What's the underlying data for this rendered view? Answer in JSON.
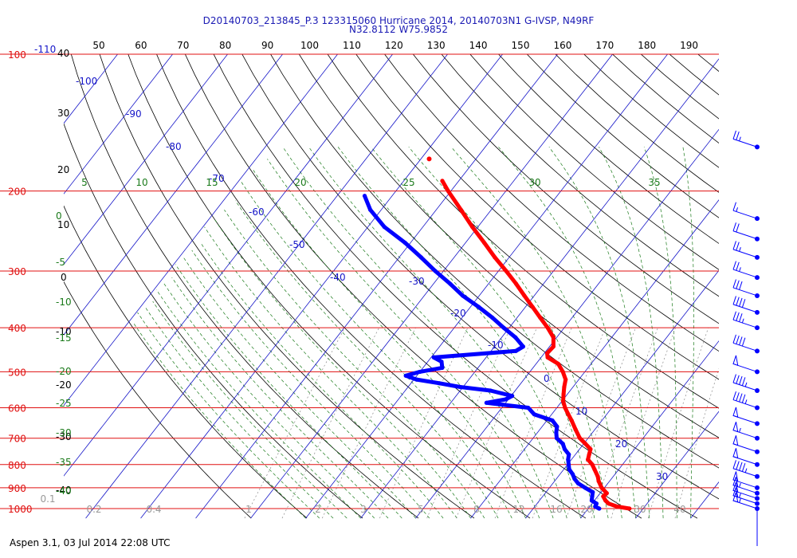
{
  "header": {
    "line1": "D20140703_213845_P.3 123315060 Hurricane 2014, 20140703N1 G-IVSP, N49RF",
    "line2": "N32.8112 W75.9852"
  },
  "footer": "Aspen 3.1, 03 Jul 2014  22:08 UTC",
  "colors": {
    "isobar": "#e01010",
    "pressure_label": "#e01010",
    "isotherm": "#1515c8",
    "dry_adiabat": "#000000",
    "moist_adiabat": "#1a7a1a",
    "mixing_ratio": "#888888",
    "temperature": "#ff0000",
    "dewpoint": "#0000ff",
    "wind_barb": "#0000ff"
  },
  "chart_data": {
    "type": "skew-t log-p",
    "title": "D20140703_213845_P.3 123315060 Hurricane 2014, 20140703N1 G-IVSP, N49RF",
    "subtitle": "N32.8112 W75.9852",
    "pressure_levels_hPa": [
      1000,
      900,
      800,
      700,
      600,
      500,
      400,
      300,
      200,
      100
    ],
    "pressure_labels": [
      "1000",
      "900",
      "800",
      "700",
      "600",
      "500",
      "400",
      "300",
      "200",
      "100"
    ],
    "top_labels": {
      "values": [
        "50",
        "60",
        "70",
        "80",
        "90",
        "100",
        "110",
        "120",
        "130",
        "140",
        "150",
        "160",
        "170",
        "180",
        "190"
      ],
      "left": "-110"
    },
    "left_axis_labels": [
      "40",
      "30",
      "20",
      "10",
      "0",
      "-10",
      "-20",
      "-30",
      "-40"
    ],
    "isotherm_labels": [
      "-100",
      "-90",
      "-80",
      "-70",
      "-60",
      "-50",
      "-40",
      "-30",
      "-20",
      "-10",
      "0",
      "10",
      "20",
      "30"
    ],
    "theta_e_labels_top": [
      "5",
      "10",
      "15",
      "20",
      "25",
      "30",
      "35"
    ],
    "theta_e_labels_left": [
      "0",
      "-5",
      "-10",
      "-15",
      "-20",
      "-25",
      "-30",
      "-35",
      "-40"
    ],
    "mixing_ratio_labels": [
      "0.1",
      "0.2",
      "0.4",
      "1",
      "2",
      "3",
      "5",
      "8",
      "12",
      "16",
      "20",
      "30",
      "40"
    ],
    "temperature": [
      {
        "p": 1000,
        "t": 27.5
      },
      {
        "p": 990,
        "t": 25.0
      },
      {
        "p": 975,
        "t": 23.0
      },
      {
        "p": 960,
        "t": 22.0
      },
      {
        "p": 940,
        "t": 21.0
      },
      {
        "p": 925,
        "t": 21.2
      },
      {
        "p": 900,
        "t": 19.5
      },
      {
        "p": 870,
        "t": 18.0
      },
      {
        "p": 850,
        "t": 17.2
      },
      {
        "p": 820,
        "t": 15.6
      },
      {
        "p": 800,
        "t": 14.5
      },
      {
        "p": 780,
        "t": 13.0
      },
      {
        "p": 760,
        "t": 12.5
      },
      {
        "p": 740,
        "t": 12.0
      },
      {
        "p": 720,
        "t": 10.3
      },
      {
        "p": 700,
        "t": 8.5
      },
      {
        "p": 670,
        "t": 6.5
      },
      {
        "p": 640,
        "t": 4.5
      },
      {
        "p": 620,
        "t": 3.0
      },
      {
        "p": 600,
        "t": 1.5
      },
      {
        "p": 580,
        "t": 0.2
      },
      {
        "p": 560,
        "t": -0.7
      },
      {
        "p": 540,
        "t": -1.6
      },
      {
        "p": 520,
        "t": -2.4
      },
      {
        "p": 500,
        "t": -4.0
      },
      {
        "p": 480,
        "t": -6.0
      },
      {
        "p": 465,
        "t": -8.8
      },
      {
        "p": 455,
        "t": -9.5
      },
      {
        "p": 440,
        "t": -9.3
      },
      {
        "p": 420,
        "t": -10.6
      },
      {
        "p": 400,
        "t": -13.0
      },
      {
        "p": 380,
        "t": -15.8
      },
      {
        "p": 360,
        "t": -18.7
      },
      {
        "p": 340,
        "t": -21.8
      },
      {
        "p": 320,
        "t": -25.0
      },
      {
        "p": 300,
        "t": -28.6
      },
      {
        "p": 280,
        "t": -32.6
      },
      {
        "p": 260,
        "t": -36.6
      },
      {
        "p": 240,
        "t": -41.0
      },
      {
        "p": 220,
        "t": -45.5
      },
      {
        "p": 200,
        "t": -50.5
      },
      {
        "p": 190,
        "t": -53.0
      }
    ],
    "temperature_isolated_point": {
      "p": 170,
      "t": -58.5
    },
    "dewpoint": [
      {
        "p": 1000,
        "td": 22.0
      },
      {
        "p": 990,
        "td": 21.0
      },
      {
        "p": 975,
        "td": 20.8
      },
      {
        "p": 960,
        "td": 19.5
      },
      {
        "p": 940,
        "td": 19.0
      },
      {
        "p": 920,
        "td": 18.5
      },
      {
        "p": 900,
        "td": 16.5
      },
      {
        "p": 880,
        "td": 14.6
      },
      {
        "p": 860,
        "td": 13.3
      },
      {
        "p": 840,
        "td": 12.3
      },
      {
        "p": 820,
        "td": 11.0
      },
      {
        "p": 800,
        "td": 10.2
      },
      {
        "p": 780,
        "td": 9.4
      },
      {
        "p": 760,
        "td": 8.8
      },
      {
        "p": 740,
        "td": 7.3
      },
      {
        "p": 720,
        "td": 6.2
      },
      {
        "p": 700,
        "td": 4.3
      },
      {
        "p": 680,
        "td": 3.4
      },
      {
        "p": 660,
        "td": 2.7
      },
      {
        "p": 640,
        "td": 1.0
      },
      {
        "p": 620,
        "td": -3.2
      },
      {
        "p": 600,
        "td": -5.2
      },
      {
        "p": 585,
        "td": -13.5
      },
      {
        "p": 575,
        "td": -10.5
      },
      {
        "p": 565,
        "td": -9.8
      },
      {
        "p": 550,
        "td": -14.5
      },
      {
        "p": 540,
        "td": -20.5
      },
      {
        "p": 530,
        "td": -24.8
      },
      {
        "p": 520,
        "td": -29.5
      },
      {
        "p": 510,
        "td": -32.0
      },
      {
        "p": 500,
        "td": -30.0
      },
      {
        "p": 490,
        "td": -26.5
      },
      {
        "p": 475,
        "td": -27.5
      },
      {
        "p": 465,
        "td": -29.5
      },
      {
        "p": 450,
        "td": -15.5
      },
      {
        "p": 440,
        "td": -14.8
      },
      {
        "p": 420,
        "td": -17.5
      },
      {
        "p": 400,
        "td": -21.0
      },
      {
        "p": 380,
        "td": -24.5
      },
      {
        "p": 360,
        "td": -28.5
      },
      {
        "p": 340,
        "td": -33.0
      },
      {
        "p": 320,
        "td": -37.0
      },
      {
        "p": 300,
        "td": -41.5
      },
      {
        "p": 280,
        "td": -46.0
      },
      {
        "p": 260,
        "td": -51.0
      },
      {
        "p": 240,
        "td": -57.0
      },
      {
        "p": 220,
        "td": -62.0
      },
      {
        "p": 205,
        "td": -65.0
      }
    ],
    "wind_barbs": [
      {
        "p": 1000,
        "speed_kt": 55
      },
      {
        "p": 975,
        "speed_kt": 55
      },
      {
        "p": 950,
        "speed_kt": 50
      },
      {
        "p": 925,
        "speed_kt": 55
      },
      {
        "p": 900,
        "speed_kt": 50
      },
      {
        "p": 850,
        "speed_kt": 45
      },
      {
        "p": 800,
        "speed_kt": 50
      },
      {
        "p": 750,
        "speed_kt": 50
      },
      {
        "p": 700,
        "speed_kt": 55
      },
      {
        "p": 650,
        "speed_kt": 50
      },
      {
        "p": 600,
        "speed_kt": 45
      },
      {
        "p": 550,
        "speed_kt": 45
      },
      {
        "p": 500,
        "speed_kt": 50
      },
      {
        "p": 450,
        "speed_kt": 40
      },
      {
        "p": 400,
        "speed_kt": 35
      },
      {
        "p": 370,
        "speed_kt": 40
      },
      {
        "p": 340,
        "speed_kt": 30
      },
      {
        "p": 310,
        "speed_kt": 25
      },
      {
        "p": 280,
        "speed_kt": 25
      },
      {
        "p": 255,
        "speed_kt": 20
      },
      {
        "p": 230,
        "speed_kt": 15
      },
      {
        "p": 160,
        "speed_kt": 25
      }
    ],
    "grid": true
  }
}
